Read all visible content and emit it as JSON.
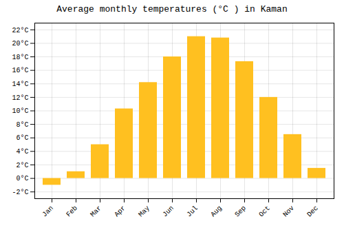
{
  "chart_data": {
    "type": "bar",
    "title": "Average monthly temperatures (°C ) in Kaman",
    "categories": [
      "Jan",
      "Feb",
      "Mar",
      "Apr",
      "May",
      "Jun",
      "Jul",
      "Aug",
      "Sep",
      "Oct",
      "Nov",
      "Dec"
    ],
    "values": [
      -1.0,
      1.0,
      5.0,
      10.3,
      14.2,
      18.0,
      21.0,
      20.8,
      17.3,
      12.0,
      6.5,
      1.5
    ],
    "color": "#FFC020",
    "ylim": [
      -3,
      23
    ],
    "yticks": [
      {
        "value": -2,
        "label": "-2°C"
      },
      {
        "value": 0,
        "label": "0°C"
      },
      {
        "value": 2,
        "label": "2°C"
      },
      {
        "value": 4,
        "label": "4°C"
      },
      {
        "value": 6,
        "label": "6°C"
      },
      {
        "value": 8,
        "label": "8°C"
      },
      {
        "value": 10,
        "label": "10°C"
      },
      {
        "value": 12,
        "label": "12°C"
      },
      {
        "value": 14,
        "label": "14°C"
      },
      {
        "value": 16,
        "label": "16°C"
      },
      {
        "value": 18,
        "label": "18°C"
      },
      {
        "value": 20,
        "label": "20°C"
      },
      {
        "value": 22,
        "label": "22°C"
      }
    ],
    "grid": true
  }
}
